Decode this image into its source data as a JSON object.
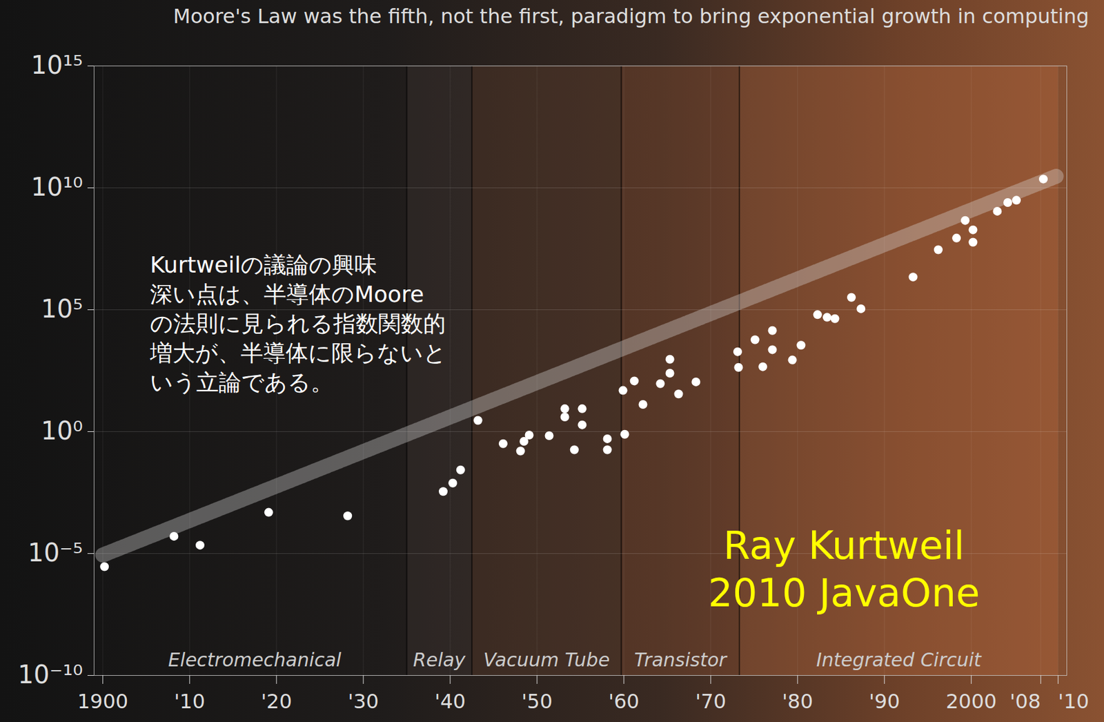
{
  "chart_data": {
    "type": "scatter",
    "title": "Moore's Law was the fifth, not the first, paradigm to bring exponential growth in computing",
    "annotations": [
      "Kurtweilの議論の興味\n深い点は、半導体のMoore\nの法則に見られる指数関数的\n増大が、半導体に限らないと\nいう立論である。",
      "Ray Kurtweil\n2010 JavaOne"
    ],
    "x": [
      1900.2,
      1908.2,
      1911.2,
      1919.1,
      1928.2,
      1939.2,
      1940.3,
      1941.2,
      1943.2,
      1946.1,
      1948.1,
      1948.5,
      1949.1,
      1951.4,
      1953.2,
      1953.2,
      1954.3,
      1955.2,
      1955.2,
      1958.1,
      1958.1,
      1960.1,
      1959.9,
      1961.2,
      1962.2,
      1964.2,
      1965.3,
      1965.3,
      1966.3,
      1968.3,
      1973.1,
      1973.2,
      1975.1,
      1976.0,
      1977.1,
      1977.1,
      1979.4,
      1980.4,
      1982.3,
      1983.4,
      1984.3,
      1986.2,
      1987.3,
      1993.3,
      1996.2,
      1998.3,
      1999.3,
      2000.2,
      2000.2,
      2003.0,
      2004.2,
      2005.2,
      2008.3
    ],
    "values": [
      2.9e-06,
      5.1e-05,
      2.2e-05,
      0.00049,
      0.00035,
      0.0035,
      0.0078,
      0.027,
      2.9,
      0.32,
      0.16,
      0.4,
      0.72,
      0.68,
      8.7,
      4,
      0.18,
      8.7,
      1.9,
      0.51,
      0.18,
      0.78,
      49,
      120,
      13,
      93,
      930,
      250,
      35,
      110,
      1900,
      430,
      5900,
      460,
      14000,
      2300,
      870,
      3500,
      63000,
      49000,
      43000,
      320000,
      110000,
      2200000.0,
      29000000.0,
      87000000.0,
      460000000.0,
      190000000.0,
      59000000.0,
      1100000000.0,
      2500000000.0,
      3100000000.0,
      23000000000.0
    ],
    "trend": {
      "x": [
        1900,
        2010
      ],
      "values": [
        8.7e-06,
        32000000000.0
      ]
    },
    "eras": [
      {
        "name": "Electromechanical",
        "start": 1900,
        "end": 1935
      },
      {
        "name": "Relay",
        "start": 1935,
        "end": 1942.5
      },
      {
        "name": "Vacuum Tube",
        "start": 1942.5,
        "end": 1959.7
      },
      {
        "name": "Transistor",
        "start": 1959.7,
        "end": 1973.3
      },
      {
        "name": "Integrated Circuit",
        "start": 1973.3,
        "end": 2010
      }
    ],
    "color": "#ffffff",
    "marker": "circle",
    "log": "y",
    "grid": true,
    "xlim": [
      1899,
      2011
    ],
    "xticks": [
      1900,
      {
        "value": 1910,
        "label": "'10"
      },
      {
        "value": 1920,
        "label": "'20"
      },
      {
        "value": 1930,
        "label": "'30"
      },
      {
        "value": 1940,
        "label": "'40"
      },
      {
        "value": 1950,
        "label": "'50"
      },
      {
        "value": 1960,
        "label": "'60"
      },
      {
        "value": 1970,
        "label": "'70"
      },
      {
        "value": 1980,
        "label": "'80"
      },
      {
        "value": 1990,
        "label": "'90"
      },
      2000,
      {
        "value": 2008,
        "label": "'08"
      },
      {
        "value": 2010,
        "label": "'10"
      }
    ],
    "ylim": [
      1e-10,
      1000000000000000.0
    ],
    "yticks": [
      {
        "value": 1e-10,
        "label": "10⁻¹⁰"
      },
      {
        "value": 1e-05,
        "label": "10⁻⁵"
      },
      {
        "value": 1,
        "label": "10⁰"
      },
      {
        "value": 100000.0,
        "label": "10⁵"
      },
      {
        "value": 10000000000.0,
        "label": "10¹⁰"
      },
      {
        "value": 1000000000000000.0,
        "label": "10¹⁵"
      }
    ]
  }
}
